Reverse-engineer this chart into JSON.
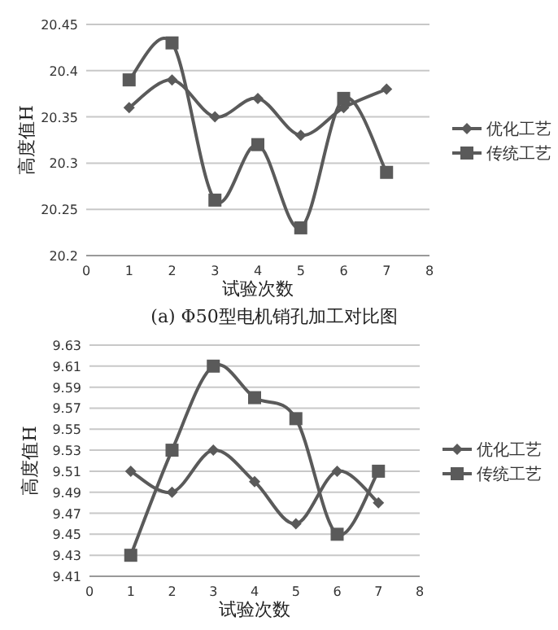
{
  "chart_data": [
    {
      "type": "line",
      "xlabel": "试验次数",
      "ylabel": "高度值H",
      "annotations": [
        "(a) Φ50型电机销孔加工对比图"
      ],
      "x": [
        1,
        2,
        3,
        4,
        5,
        6,
        7
      ],
      "xlim": [
        0,
        8
      ],
      "xticks": [
        0,
        1,
        2,
        3,
        4,
        5,
        6,
        7,
        8
      ],
      "ylim": [
        20.2,
        20.45
      ],
      "yticks": [
        20.2,
        20.25,
        20.3,
        20.35,
        20.4,
        20.45
      ],
      "grid": "y",
      "legend": "right",
      "line_style": "solid",
      "series": [
        {
          "name": "优化工艺",
          "color": "#5a5a5a",
          "marker": "diamond",
          "values": [
            20.36,
            20.39,
            20.35,
            20.37,
            20.33,
            20.36,
            20.38
          ]
        },
        {
          "name": "传统工艺",
          "color": "#5a5a5a",
          "marker": "square",
          "values": [
            20.39,
            20.43,
            20.26,
            20.32,
            20.23,
            20.37,
            20.29
          ]
        }
      ]
    },
    {
      "type": "line",
      "xlabel": "试验次数",
      "ylabel": "高度值H",
      "x": [
        1,
        2,
        3,
        4,
        5,
        6,
        7
      ],
      "xlim": [
        0,
        8
      ],
      "xticks": [
        0,
        1,
        2,
        3,
        4,
        5,
        6,
        7,
        8
      ],
      "ylim": [
        9.41,
        9.63
      ],
      "yticks": [
        9.41,
        9.43,
        9.45,
        9.47,
        9.49,
        9.51,
        9.53,
        9.55,
        9.57,
        9.59,
        9.61,
        9.63
      ],
      "grid": "y",
      "legend": "right",
      "line_style": "solid",
      "series": [
        {
          "name": "优化工艺",
          "color": "#5a5a5a",
          "marker": "diamond",
          "values": [
            9.51,
            9.49,
            9.53,
            9.5,
            9.46,
            9.51,
            9.48
          ]
        },
        {
          "name": "传统工艺",
          "color": "#5a5a5a",
          "marker": "square",
          "values": [
            9.43,
            9.53,
            9.61,
            9.58,
            9.56,
            9.45,
            9.51
          ]
        }
      ]
    }
  ]
}
